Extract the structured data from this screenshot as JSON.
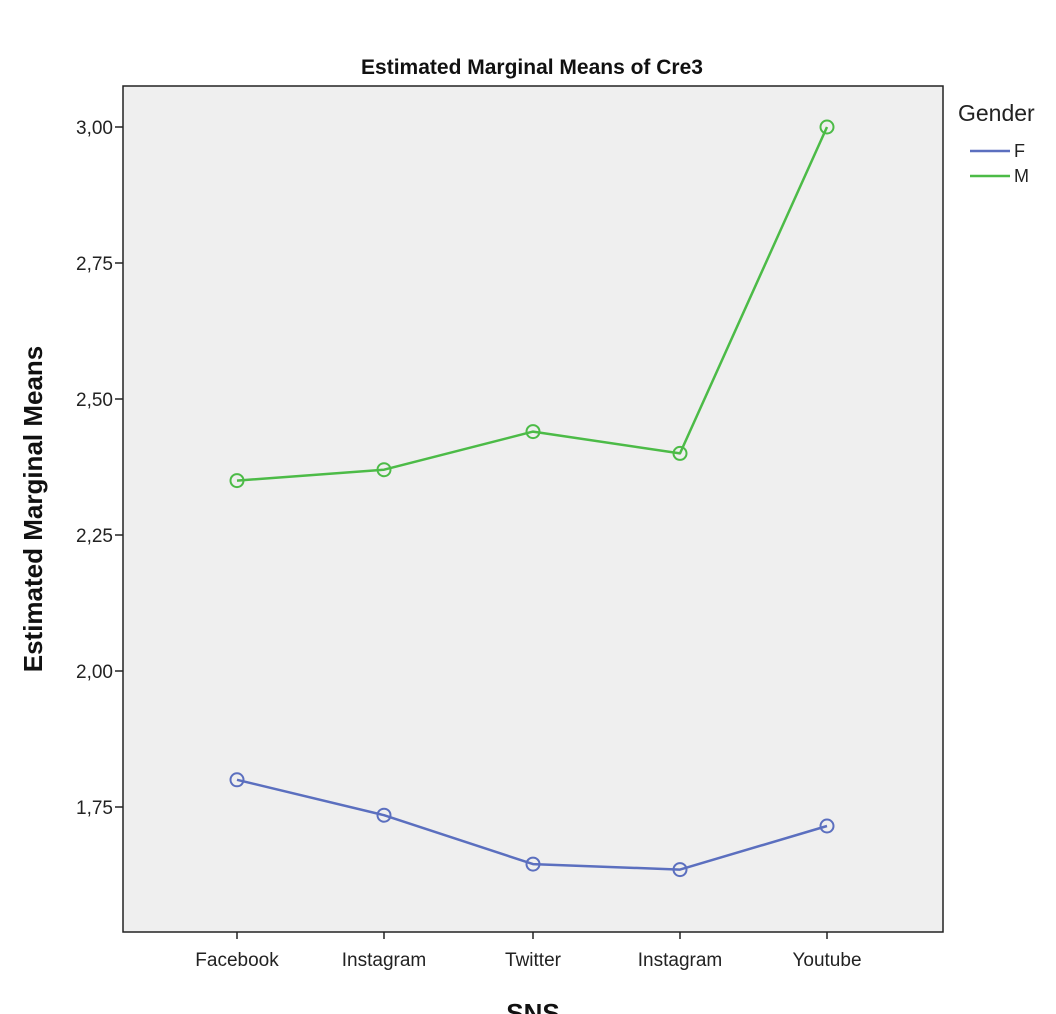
{
  "chart_data": {
    "type": "line",
    "title": "Estimated Marginal Means of Cre3",
    "xlabel": "SNS",
    "ylabel": "Estimated Marginal Means",
    "categories": [
      "Facebook",
      "Instagram",
      "Twitter",
      "Instagram",
      "Youtube"
    ],
    "ylim": [
      1.54,
      3.08
    ],
    "yticks": [
      1.75,
      2.0,
      2.25,
      2.5,
      2.75,
      3.0
    ],
    "ytick_labels": [
      "1,75",
      "2,00",
      "2,25",
      "2,50",
      "2,75",
      "3,00"
    ],
    "grid": false,
    "legend": {
      "title": "Gender",
      "placement": "right-top"
    },
    "series": [
      {
        "name": "F",
        "color": "#5b6fbf",
        "values": [
          1.8,
          1.735,
          1.645,
          1.635,
          1.715
        ]
      },
      {
        "name": "M",
        "color": "#4cbb47",
        "values": [
          2.35,
          2.37,
          2.44,
          2.4,
          3.0
        ]
      }
    ],
    "plot_background": "#efefef",
    "marker": "open-circle"
  }
}
